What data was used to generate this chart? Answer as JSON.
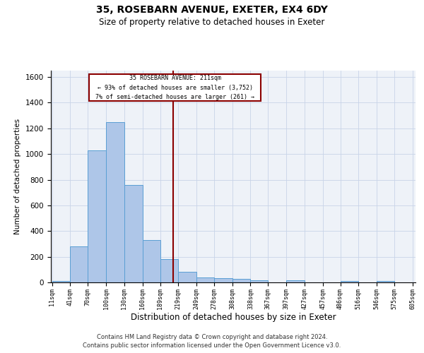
{
  "title1": "35, ROSEBARN AVENUE, EXETER, EX4 6DY",
  "title2": "Size of property relative to detached houses in Exeter",
  "xlabel": "Distribution of detached houses by size in Exeter",
  "ylabel": "Number of detached properties",
  "footer1": "Contains HM Land Registry data © Crown copyright and database right 2024.",
  "footer2": "Contains public sector information licensed under the Open Government Licence v3.0.",
  "annotation_line1": "35 ROSEBARN AVENUE: 211sqm",
  "annotation_line2": "← 93% of detached houses are smaller (3,752)",
  "annotation_line3": "7% of semi-detached houses are larger (261) →",
  "subject_value": 211,
  "bar_edges": [
    11,
    41,
    70,
    100,
    130,
    160,
    189,
    219,
    249,
    278,
    308,
    338,
    367,
    397,
    427,
    457,
    486,
    516,
    546,
    575,
    605
  ],
  "bar_heights": [
    10,
    280,
    1030,
    1250,
    760,
    330,
    180,
    80,
    40,
    35,
    25,
    15,
    0,
    15,
    0,
    0,
    10,
    0,
    10,
    0,
    0
  ],
  "bar_color": "#aec6e8",
  "bar_edge_color": "#5a9fd4",
  "vline_color": "#8b0000",
  "vline_x": 211,
  "annotation_box_color": "#8b0000",
  "grid_color": "#c8d4e8",
  "bg_color": "#eef2f8",
  "ylim": [
    0,
    1650
  ],
  "yticks": [
    0,
    200,
    400,
    600,
    800,
    1000,
    1200,
    1400,
    1600
  ],
  "tick_labels": [
    "11sqm",
    "41sqm",
    "70sqm",
    "100sqm",
    "130sqm",
    "160sqm",
    "189sqm",
    "219sqm",
    "249sqm",
    "278sqm",
    "308sqm",
    "338sqm",
    "367sqm",
    "397sqm",
    "427sqm",
    "457sqm",
    "486sqm",
    "516sqm",
    "546sqm",
    "575sqm",
    "605sqm"
  ]
}
